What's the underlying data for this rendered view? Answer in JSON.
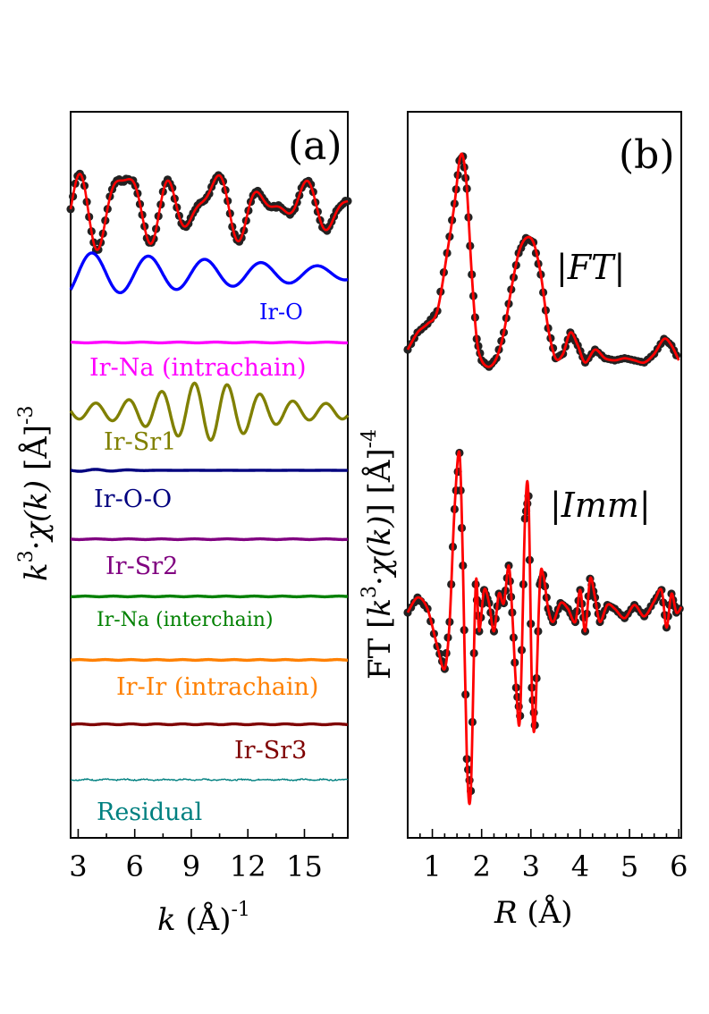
{
  "chart_data": [
    {
      "type": "line",
      "panel_label": "(a)",
      "xlabel": {
        "italic": "k",
        "rest": " (Å)",
        "sup": "-1"
      },
      "ylabel": {
        "k": "k",
        "kexp": "3",
        "mid": "·",
        "chi": "χ(k)",
        "unit": " [Å]",
        "sup": "-3"
      },
      "xlim": [
        2.6,
        17.3
      ],
      "xticks": [
        "3",
        "6",
        "9",
        "12",
        "15"
      ],
      "xtick_values": [
        3,
        6,
        9,
        12,
        15
      ],
      "grid": false,
      "series": [
        {
          "name": "",
          "role": "data_and_fit",
          "color": "#ff0000",
          "marker_color": "#222222",
          "amplitude": 2.2,
          "freq": 2.6
        },
        {
          "name": "Ir-O",
          "color": "#0000ff",
          "amplitude": 1.0,
          "freq": 2.1
        },
        {
          "name": "Ir-Na (intrachain)",
          "color": "#ff00ff",
          "amplitude": 0.1,
          "freq": 3.2
        },
        {
          "name": "Ir-Sr1",
          "color": "#808000",
          "amplitude": 1.0,
          "freq": 3.6
        },
        {
          "name": "Ir-O-O",
          "color": "#00007f",
          "amplitude": 0.25,
          "freq": 3.6
        },
        {
          "name": "Ir-Sr2",
          "color": "#800080",
          "amplitude": 0.12,
          "freq": 3.6
        },
        {
          "name": "Ir-Na (interchain)",
          "color": "#008000",
          "amplitude": 0.12,
          "freq": 4.2
        },
        {
          "name": "Ir-Ir (intrachain)",
          "color": "#ff8000",
          "amplitude": 0.12,
          "freq": 4.6
        },
        {
          "name": "Ir-Sr3",
          "color": "#7f0000",
          "amplitude": 0.15,
          "freq": 4.6
        },
        {
          "name": "Residual",
          "color": "#008080",
          "amplitude": 0.2,
          "freq": 6.0
        }
      ]
    },
    {
      "type": "line",
      "panel_label": "(b)",
      "xlabel": {
        "italic": "R",
        "rest": " (Å)"
      },
      "ylabel": {
        "pre": "FT [",
        "k": "k",
        "kexp": "3",
        "mid": "·",
        "chi": "χ(k)",
        "unit": "] [Å]",
        "sup": "-4"
      },
      "xlim": [
        0.5,
        6.05
      ],
      "xticks": [
        "1",
        "2",
        "3",
        "4",
        "5",
        "6"
      ],
      "xtick_values": [
        1,
        2,
        3,
        4,
        5,
        6
      ],
      "grid": false,
      "series": [
        {
          "name": "|FT|",
          "color": "#ff0000",
          "marker_color": "#222222",
          "points": [
            [
              0.5,
              0.1
            ],
            [
              0.7,
              0.18
            ],
            [
              0.9,
              0.22
            ],
            [
              1.1,
              0.28
            ],
            [
              1.3,
              0.55
            ],
            [
              1.45,
              0.78
            ],
            [
              1.55,
              0.98
            ],
            [
              1.62,
              1.0
            ],
            [
              1.7,
              0.85
            ],
            [
              1.8,
              0.45
            ],
            [
              1.9,
              0.15
            ],
            [
              2.0,
              0.05
            ],
            [
              2.15,
              0.02
            ],
            [
              2.3,
              0.06
            ],
            [
              2.45,
              0.18
            ],
            [
              2.6,
              0.38
            ],
            [
              2.75,
              0.55
            ],
            [
              2.9,
              0.62
            ],
            [
              3.05,
              0.6
            ],
            [
              3.2,
              0.45
            ],
            [
              3.35,
              0.2
            ],
            [
              3.5,
              0.06
            ],
            [
              3.65,
              0.08
            ],
            [
              3.8,
              0.18
            ],
            [
              3.95,
              0.12
            ],
            [
              4.1,
              0.04
            ],
            [
              4.3,
              0.1
            ],
            [
              4.5,
              0.06
            ],
            [
              4.7,
              0.05
            ],
            [
              4.9,
              0.06
            ],
            [
              5.1,
              0.05
            ],
            [
              5.3,
              0.04
            ],
            [
              5.5,
              0.08
            ],
            [
              5.7,
              0.15
            ],
            [
              5.85,
              0.12
            ],
            [
              6.0,
              0.05
            ]
          ]
        },
        {
          "name": "|Imm|",
          "color": "#ff0000",
          "marker_color": "#222222",
          "points": [
            [
              0.5,
              0.0
            ],
            [
              0.7,
              0.08
            ],
            [
              0.9,
              0.02
            ],
            [
              1.1,
              -0.18
            ],
            [
              1.25,
              -0.3
            ],
            [
              1.35,
              -0.05
            ],
            [
              1.45,
              0.55
            ],
            [
              1.55,
              0.85
            ],
            [
              1.62,
              0.25
            ],
            [
              1.7,
              -0.78
            ],
            [
              1.78,
              -0.95
            ],
            [
              1.88,
              0.15
            ],
            [
              1.95,
              -0.1
            ],
            [
              2.05,
              0.12
            ],
            [
              2.15,
              0.05
            ],
            [
              2.25,
              -0.1
            ],
            [
              2.35,
              0.1
            ],
            [
              2.45,
              0.05
            ],
            [
              2.55,
              0.25
            ],
            [
              2.62,
              0.0
            ],
            [
              2.7,
              -0.4
            ],
            [
              2.78,
              -0.55
            ],
            [
              2.88,
              0.5
            ],
            [
              2.95,
              0.62
            ],
            [
              3.02,
              -0.4
            ],
            [
              3.08,
              -0.6
            ],
            [
              3.18,
              0.15
            ],
            [
              3.25,
              0.2
            ],
            [
              3.35,
              0.02
            ],
            [
              3.45,
              -0.05
            ],
            [
              3.6,
              0.05
            ],
            [
              3.75,
              0.02
            ],
            [
              3.9,
              -0.05
            ],
            [
              4.0,
              0.12
            ],
            [
              4.1,
              -0.1
            ],
            [
              4.2,
              0.18
            ],
            [
              4.3,
              0.08
            ],
            [
              4.4,
              -0.05
            ],
            [
              4.55,
              0.04
            ],
            [
              4.7,
              0.02
            ],
            [
              4.9,
              -0.03
            ],
            [
              5.1,
              0.04
            ],
            [
              5.3,
              -0.02
            ],
            [
              5.5,
              0.06
            ],
            [
              5.65,
              0.12
            ],
            [
              5.75,
              -0.08
            ],
            [
              5.85,
              0.1
            ],
            [
              5.95,
              0.0
            ],
            [
              6.05,
              0.03
            ]
          ]
        }
      ]
    }
  ]
}
